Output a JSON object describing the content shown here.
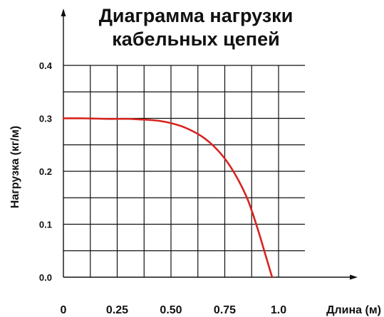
{
  "chart_data": {
    "type": "line",
    "title_lines": [
      "Диаграмма нагрузки",
      "кабельных цепей"
    ],
    "xlabel": "Длина (м)",
    "ylabel": "Нагрузка (кг/м)",
    "xlim": [
      0,
      1.0
    ],
    "ylim": [
      0,
      0.4
    ],
    "x_ticks": [
      0,
      0.25,
      0.5,
      0.75,
      1.0
    ],
    "x_tick_labels": [
      "0",
      "0.25",
      "0.50",
      "0.75",
      "1.0"
    ],
    "y_ticks": [
      0,
      0.1,
      0.2,
      0.3,
      0.4
    ],
    "y_tick_labels": [
      "0.0",
      "0.1",
      "0.2",
      "0.3",
      "0.4"
    ],
    "grid": true,
    "legend": "none",
    "series": [
      {
        "color": "#d8231f",
        "x": [
          0,
          0.1,
          0.2,
          0.3,
          0.35,
          0.4,
          0.45,
          0.5,
          0.55,
          0.6,
          0.65,
          0.7,
          0.75,
          0.8,
          0.85,
          0.88,
          0.91,
          0.94,
          0.97
        ],
        "y": [
          0.3,
          0.3,
          0.299,
          0.299,
          0.298,
          0.297,
          0.295,
          0.291,
          0.285,
          0.276,
          0.264,
          0.247,
          0.224,
          0.193,
          0.153,
          0.12,
          0.082,
          0.041,
          0.0
        ]
      }
    ]
  }
}
